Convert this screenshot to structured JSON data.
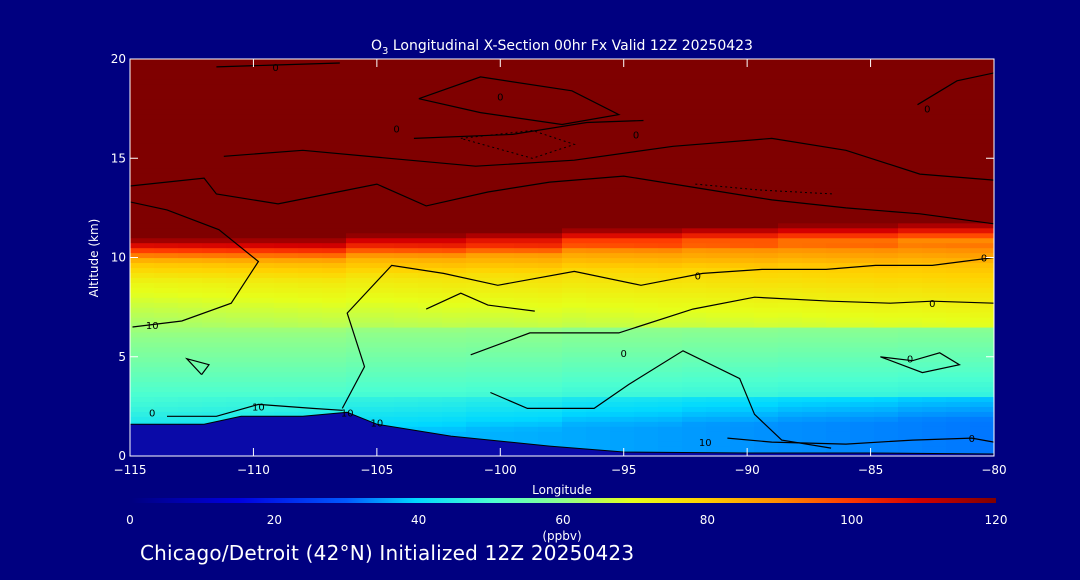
{
  "chart_data": {
    "type": "heatmap",
    "title_main": "O",
    "title_sub": "3",
    "title_rest": " Longitudinal X-Section 00hr  Fx Valid 12Z 20250423",
    "xlabel": "Longitude",
    "ylabel": "Altitude (km)",
    "xlim": [
      -115,
      -80
    ],
    "ylim": [
      0,
      20
    ],
    "x_ticks": [
      -115,
      -110,
      -105,
      -100,
      -95,
      -90,
      -85,
      -80
    ],
    "x_tick_labels": [
      "−115",
      "−110",
      "−105",
      "−100",
      "−95",
      "−90",
      "−85",
      "−80"
    ],
    "y_ticks": [
      0,
      5,
      10,
      15,
      20
    ],
    "y_tick_labels": [
      "0",
      "5",
      "10",
      "15",
      "20"
    ],
    "colorbar": {
      "min": 0,
      "max": 120,
      "ticks": [
        0,
        20,
        40,
        60,
        80,
        100,
        120
      ],
      "tick_labels": [
        "0",
        "20",
        "40",
        "60",
        "80",
        "100",
        "120"
      ],
      "unit": "(ppbv)"
    },
    "stratosphere_floor_km": [
      10.2,
      10.2,
      10.4,
      10.5,
      10.7,
      10.8,
      10.9,
      11.0
    ],
    "terrain_top_km": [
      [
        -115,
        1.6
      ],
      [
        -112,
        1.6
      ],
      [
        -110.5,
        2.0
      ],
      [
        -108,
        2.0
      ],
      [
        -106.2,
        2.2
      ],
      [
        -105,
        1.6
      ],
      [
        -102,
        1.0
      ],
      [
        -98,
        0.5
      ],
      [
        -95,
        0.2
      ],
      [
        -90,
        0.15
      ],
      [
        -85,
        0.15
      ],
      [
        -80,
        0.1
      ]
    ],
    "ozone_profile": [
      {
        "alt_km": 0,
        "ppbv": 40
      },
      {
        "alt_km": 1.0,
        "ppbv": 40
      },
      {
        "alt_km": 2.5,
        "ppbv": 48
      },
      {
        "alt_km": 4.5,
        "ppbv": 55
      },
      {
        "alt_km": 6.0,
        "ppbv": 60
      },
      {
        "alt_km": 7.5,
        "ppbv": 66
      },
      {
        "alt_km": 8.8,
        "ppbv": 72
      },
      {
        "alt_km": 9.8,
        "ppbv": 82
      },
      {
        "alt_km": 10.4,
        "ppbv": 100
      },
      {
        "alt_km": 11.0,
        "ppbv": 120
      },
      {
        "alt_km": 20,
        "ppbv": 120
      }
    ],
    "contour_labels": [
      {
        "text": "0",
        "x": -109.1,
        "y": 19.6
      },
      {
        "text": "0",
        "x": -100,
        "y": 18.1
      },
      {
        "text": "0",
        "x": -104.2,
        "y": 16.5
      },
      {
        "text": "0",
        "x": -94.5,
        "y": 16.2
      },
      {
        "text": "0",
        "x": -82.7,
        "y": 17.5
      },
      {
        "text": "0",
        "x": -92,
        "y": 9.1
      },
      {
        "text": "0",
        "x": -80.4,
        "y": 10.0
      },
      {
        "text": "0",
        "x": -82.5,
        "y": 7.7
      },
      {
        "text": "0",
        "x": -95,
        "y": 5.2
      },
      {
        "text": "0",
        "x": -83.4,
        "y": 4.9
      },
      {
        "text": "0",
        "x": -114.1,
        "y": 2.2
      },
      {
        "text": "0",
        "x": -80.9,
        "y": 0.9
      },
      {
        "text": "10",
        "x": -114.1,
        "y": 6.6
      },
      {
        "text": "10",
        "x": -109.8,
        "y": 2.5
      },
      {
        "text": "10",
        "x": -106.2,
        "y": 2.2
      },
      {
        "text": "10",
        "x": -105,
        "y": 1.7
      },
      {
        "text": "10",
        "x": -91.7,
        "y": 0.7
      }
    ]
  },
  "footer": {
    "text": "Chicago/Detroit (42°N) Initialized 12Z 20250423"
  },
  "colors": {
    "background": "#000080",
    "frame": "#ffffff",
    "contour": "#000000",
    "terrain": "#0a0aa8"
  }
}
